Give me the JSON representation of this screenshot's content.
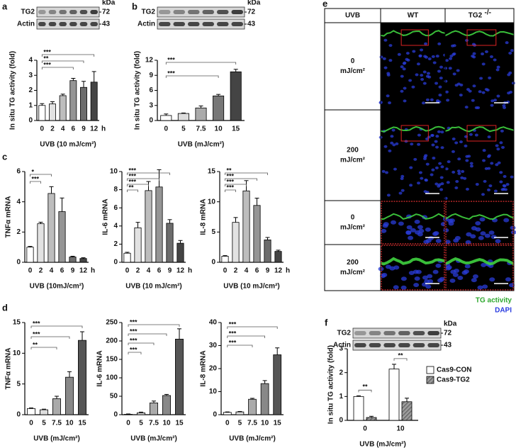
{
  "panels": [
    "a",
    "b",
    "c",
    "d",
    "e",
    "f"
  ],
  "chart_data": [
    {
      "type": "bar",
      "ylabel": "In situ TG activity (fold)",
      "xlabel": "UVB (10 mJ/cm²)",
      "categories": [
        "0",
        "2",
        "4",
        "6",
        "9",
        "12"
      ],
      "x_unit": "h",
      "values": [
        1.0,
        1.1,
        1.65,
        2.65,
        2.2,
        2.55
      ],
      "errors": [
        0.12,
        0.15,
        0.1,
        0.15,
        0.4,
        0.7
      ],
      "colors": [
        "#ffffff",
        "#e2e2e2",
        "#bdbdbd",
        "#959595",
        "#6c6c6c",
        "#444444"
      ],
      "ylim": [
        0,
        4
      ],
      "yticks": [
        0,
        1,
        2,
        3,
        4
      ],
      "significance": [
        {
          "label": "***",
          "to": "12"
        },
        {
          "label": "**",
          "to": "9"
        },
        {
          "label": "***",
          "to": "6"
        }
      ],
      "blot": {
        "rows": [
          "TG2",
          "Actin"
        ],
        "unit": "kDa",
        "markers": [
          72,
          43
        ]
      }
    },
    {
      "type": "bar",
      "ylabel": "In situ TG activity (fold)",
      "xlabel": "UVB (mJ/cm²)",
      "categories": [
        "0",
        "5",
        "7.5",
        "10",
        "15"
      ],
      "values": [
        1.0,
        1.4,
        2.5,
        4.9,
        9.7
      ],
      "errors": [
        0.3,
        0.1,
        0.4,
        0.3,
        0.5
      ],
      "colors": [
        "#ffffff",
        "#dddddd",
        "#aaaaaa",
        "#777777",
        "#444444"
      ],
      "ylim": [
        0,
        12
      ],
      "yticks": [
        0,
        3,
        6,
        9,
        12
      ],
      "significance": [
        {
          "label": "***",
          "to": "15"
        },
        {
          "label": "***",
          "to": "10"
        }
      ],
      "blot": {
        "rows": [
          "TG2",
          "Actin"
        ],
        "unit": "kDa",
        "markers": [
          72,
          43
        ]
      }
    },
    {
      "type": "bar",
      "ylabel": "TNFα mRNA",
      "xlabel": "UVB (10mJ/cm²)",
      "categories": [
        "0",
        "2",
        "4",
        "6",
        "9",
        "12"
      ],
      "x_unit": "h",
      "values": [
        1.0,
        2.55,
        4.55,
        3.35,
        0.35,
        0.25
      ],
      "errors": [
        0.05,
        0.1,
        0.45,
        0.9,
        0.05,
        0.05
      ],
      "colors": [
        "#ffffff",
        "#e2e2e2",
        "#bdbdbd",
        "#959595",
        "#6c6c6c",
        "#444444"
      ],
      "ylim": [
        0,
        6
      ],
      "yticks": [
        0,
        2,
        4,
        6
      ],
      "significance": [
        {
          "label": "*",
          "to": "4"
        },
        {
          "label": "***",
          "to": "2"
        }
      ]
    },
    {
      "type": "bar",
      "ylabel": "IL-6 mRNA",
      "xlabel": "UVB (10 mJ/cm²)",
      "categories": [
        "0",
        "2",
        "4",
        "6",
        "9",
        "12"
      ],
      "x_unit": "h",
      "values": [
        1.0,
        3.8,
        7.9,
        8.3,
        4.3,
        2.1
      ],
      "errors": [
        0.1,
        0.6,
        1.0,
        1.9,
        0.4,
        0.3
      ],
      "colors": [
        "#ffffff",
        "#e2e2e2",
        "#bdbdbd",
        "#959595",
        "#6c6c6c",
        "#444444"
      ],
      "ylim": [
        0,
        10
      ],
      "yticks": [
        0,
        2,
        4,
        6,
        8,
        10
      ],
      "significance": [
        {
          "label": "***",
          "to": "9"
        },
        {
          "label": "***",
          "to": "6"
        },
        {
          "label": "***",
          "to": "4"
        },
        {
          "label": "**",
          "to": "2"
        }
      ]
    },
    {
      "type": "bar",
      "ylabel": "IL-8 mRNA",
      "xlabel": "UVB (10 mJ/cm²)",
      "categories": [
        "0",
        "2",
        "4",
        "6",
        "9",
        "12"
      ],
      "x_unit": "h",
      "values": [
        1.0,
        6.6,
        11.8,
        9.4,
        3.7,
        1.8
      ],
      "errors": [
        0.1,
        0.8,
        1.7,
        1.2,
        0.4,
        0.2
      ],
      "colors": [
        "#ffffff",
        "#e2e2e2",
        "#bdbdbd",
        "#959595",
        "#6c6c6c",
        "#444444"
      ],
      "ylim": [
        0,
        15
      ],
      "yticks": [
        0,
        5,
        10,
        15
      ],
      "significance": [
        {
          "label": "**",
          "to": "9"
        },
        {
          "label": "***",
          "to": "6"
        },
        {
          "label": "***",
          "to": "4"
        },
        {
          "label": "***",
          "to": "2"
        }
      ]
    },
    {
      "type": "bar",
      "ylabel": "TNFα mRNA",
      "xlabel": "UVB (mJ/cm²)",
      "categories": [
        "0",
        "5",
        "7.5",
        "10",
        "15"
      ],
      "values": [
        1.0,
        0.8,
        2.6,
        6.1,
        12.1
      ],
      "errors": [
        0.1,
        0.1,
        0.4,
        0.9,
        1.4
      ],
      "colors": [
        "#ffffff",
        "#dddddd",
        "#aaaaaa",
        "#888888",
        "#555555"
      ],
      "ylim": [
        0,
        15
      ],
      "yticks": [
        0,
        5,
        10,
        15
      ],
      "significance": [
        {
          "label": "***",
          "to": "15"
        },
        {
          "label": "***",
          "to": "10"
        },
        {
          "label": "**",
          "to": "7.5"
        }
      ]
    },
    {
      "type": "bar",
      "ylabel": "IL-6 mRNA",
      "xlabel": "UVB (mJ/cm²)",
      "categories": [
        "0",
        "5",
        "7.5",
        "10",
        "15"
      ],
      "values": [
        1,
        5,
        32,
        52,
        205
      ],
      "errors": [
        1,
        2,
        5,
        3,
        28
      ],
      "colors": [
        "#ffffff",
        "#dddddd",
        "#aaaaaa",
        "#888888",
        "#555555"
      ],
      "ylim": [
        0,
        250
      ],
      "yticks": [
        0,
        50,
        100,
        150,
        200,
        250
      ],
      "significance": [
        {
          "label": "***",
          "to": "15"
        },
        {
          "label": "***",
          "to": "10"
        },
        {
          "label": "***",
          "to": "7.5"
        },
        {
          "label": "***",
          "to": "5"
        }
      ]
    },
    {
      "type": "bar",
      "ylabel": "IL-8 mRNA",
      "xlabel": "UVB (mJ/cm²)",
      "categories": [
        "0",
        "5",
        "7.5",
        "10",
        "15"
      ],
      "values": [
        1.0,
        1.2,
        6.7,
        13.5,
        26
      ],
      "errors": [
        0.2,
        0.2,
        0.4,
        1.3,
        3.0
      ],
      "colors": [
        "#ffffff",
        "#dddddd",
        "#aaaaaa",
        "#888888",
        "#555555"
      ],
      "ylim": [
        0,
        40
      ],
      "yticks": [
        0,
        10,
        20,
        30,
        40
      ],
      "significance": [
        {
          "label": "***",
          "to": "15"
        },
        {
          "label": "***",
          "to": "10"
        },
        {
          "label": "***",
          "to": "7.5"
        }
      ]
    },
    {
      "type": "grouped_bar",
      "ylabel": "In situ TG activity (fold)",
      "xlabel": "UVB (mJ/cm²)",
      "categories": [
        "0",
        "10"
      ],
      "series": [
        {
          "name": "Cas9-CON",
          "color": "#ffffff",
          "values": [
            1.0,
            2.15
          ],
          "errors": [
            0.03,
            0.2
          ]
        },
        {
          "name": "Cas9-TG2",
          "color": "#999999",
          "hatch": true,
          "values": [
            0.12,
            0.78
          ],
          "errors": [
            0.05,
            0.15
          ]
        }
      ],
      "ylim": [
        0,
        3
      ],
      "yticks": [
        0,
        1,
        2,
        3
      ],
      "significance": [
        {
          "label": "**",
          "category": "0"
        },
        {
          "label": "**",
          "category": "10"
        }
      ],
      "blot": {
        "rows": [
          "TG2",
          "Actin"
        ],
        "unit": "kDa",
        "markers": [
          72,
          43
        ]
      }
    }
  ],
  "panel_e": {
    "header": [
      "UVB",
      "WT",
      "TG2"
    ],
    "header_superscript": "-/-",
    "rows": [
      [
        "0",
        "mJ/cm²"
      ],
      [
        "200",
        "mJ/cm²"
      ],
      [
        "0",
        "mJ/cm²"
      ],
      [
        "200",
        "mJ/cm²"
      ]
    ],
    "legend": [
      "TG activity",
      "DAPI"
    ]
  }
}
